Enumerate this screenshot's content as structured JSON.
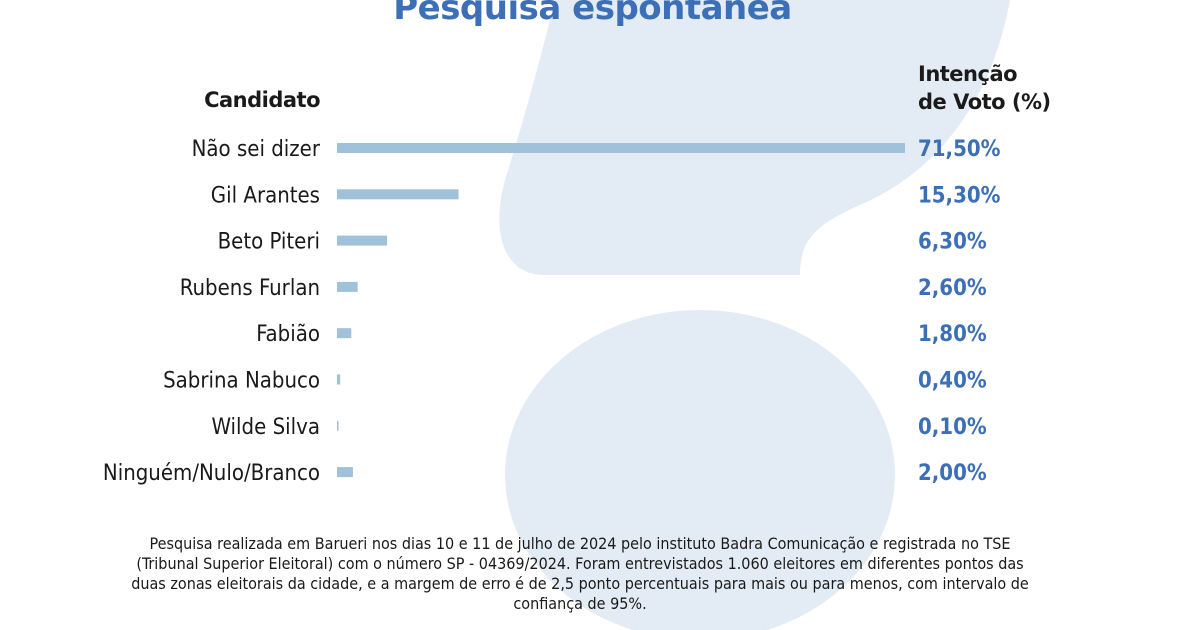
{
  "header": {
    "title": "Pesquisa espontânea",
    "col_candidate": "Candidato",
    "col_pct_line1": "Intenção",
    "col_pct_line2": "de Voto (%)"
  },
  "colors": {
    "bar": "#9fc1d9",
    "value_text": "#3c6fb6",
    "label_text": "#1a1a1a",
    "background_mark": "#e3ecf4"
  },
  "chart_data": {
    "type": "bar",
    "orientation": "horizontal",
    "categories": [
      "Não sei dizer",
      "Gil Arantes",
      "Beto Piteri",
      "Rubens Furlan",
      "Fabião",
      "Sabrina Nabuco",
      "Wilde Silva",
      "Ninguém/Nulo/Branco"
    ],
    "values": [
      71.5,
      15.3,
      6.3,
      2.6,
      1.8,
      0.4,
      0.1,
      2.0
    ],
    "value_labels": [
      "71,50%",
      "15,30%",
      "6,30%",
      "2,60%",
      "1,80%",
      "0,40%",
      "0,10%",
      "2,00%"
    ],
    "xlim": [
      0,
      71.5
    ],
    "grid": false
  },
  "footnote": "Pesquisa realizada em Barueri nos dias 10 e 11 de julho de 2024 pelo instituto Badra Comunicação e registrada no TSE (Tribunal Superior Eleitoral) com o número SP - 04369/2024. Foram entrevistados 1.060 eleitores em diferentes pontos das duas zonas eleitorais da cidade, e a margem de erro é de 2,5 ponto percentuais para mais ou para menos, com intervalo de confiança de 95%."
}
